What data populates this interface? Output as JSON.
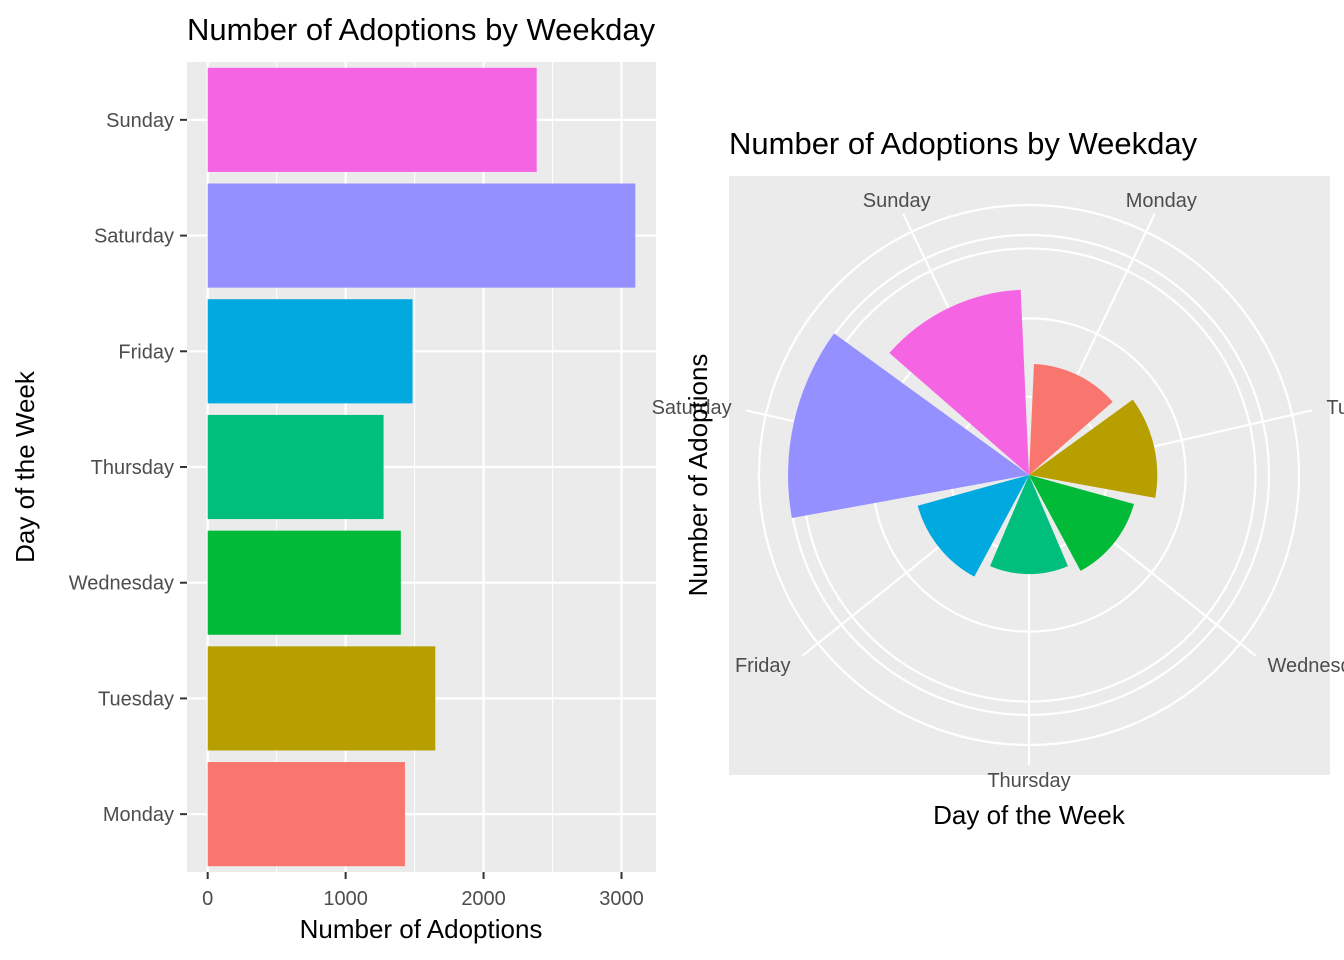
{
  "chart_data": [
    {
      "type": "bar",
      "orientation": "horizontal",
      "title": "Number of Adoptions by Weekday",
      "xlabel": "Number of Adoptions",
      "ylabel": "Day of the Week",
      "categories": [
        "Monday",
        "Tuesday",
        "Wednesday",
        "Thursday",
        "Friday",
        "Saturday",
        "Sunday"
      ],
      "values": [
        1430,
        1650,
        1400,
        1275,
        1485,
        3100,
        2385
      ],
      "colors": [
        "#F8766D",
        "#B79F00",
        "#00BA38",
        "#00BF7D",
        "#00A9E0",
        "#9590FF",
        "#F564E3"
      ],
      "xlim": [
        -150,
        3250
      ],
      "xticks": [
        "0",
        "1000",
        "2000",
        "3000"
      ],
      "xtick_values": [
        0,
        1000,
        2000,
        3000
      ],
      "grid": true,
      "legend": "none"
    },
    {
      "type": "bar",
      "coord": "polar",
      "title": "Number of Adoptions by Weekday",
      "xlabel": "Day of the Week",
      "ylabel": "Number of Adoptions",
      "categories": [
        "Monday",
        "Tuesday",
        "Wednesday",
        "Thursday",
        "Friday",
        "Saturday",
        "Sunday"
      ],
      "values": [
        1430,
        1650,
        1400,
        1275,
        1485,
        3100,
        2385
      ],
      "colors": [
        "#F8766D",
        "#B79F00",
        "#00BA38",
        "#00BF7D",
        "#00A9E0",
        "#9590FF",
        "#F564E3"
      ],
      "grid": true,
      "legend": "none"
    }
  ]
}
